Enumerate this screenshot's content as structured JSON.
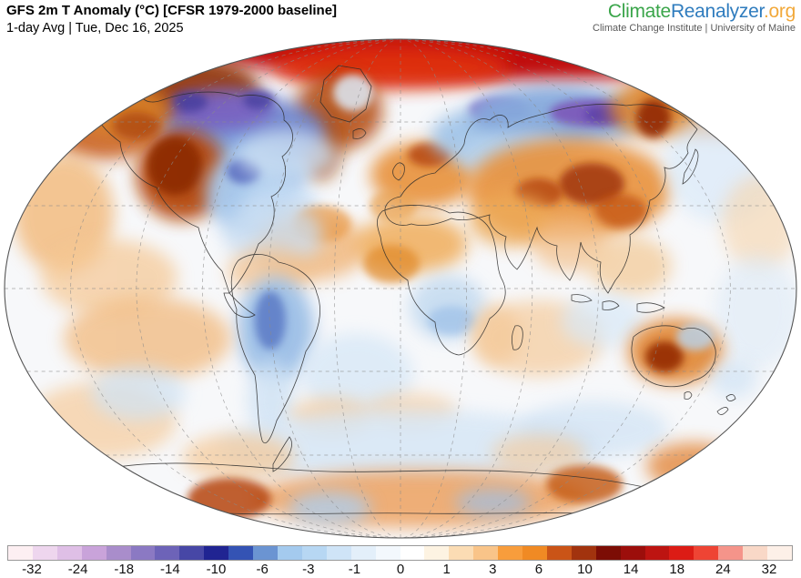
{
  "header": {
    "title": "GFS 2m T Anomaly (°C) [CFSR 1979-2000 baseline]",
    "subtitle": "1-day Avg | Tue, Dec 16, 2025",
    "logo": {
      "part1": "Climate",
      "part2": "Reanalyzer",
      "part3": ".org",
      "color1": "#3aa54a",
      "color2": "#2f7cbe",
      "color3": "#f2a93b",
      "tagline": "Climate Change Institute | University of Maine"
    }
  },
  "chart_data": {
    "type": "heatmap",
    "title": "GFS 2m T Anomaly (°C) [CFSR 1979-2000 baseline]",
    "subtitle": "1-day Avg | Tue, Dec 16, 2025",
    "unit": "°C",
    "projection": "global world map (Winkel-tripel style ellipse)",
    "scale_ticks": [
      -32,
      -24,
      -18,
      -14,
      -10,
      -6,
      -3,
      -1,
      0,
      1,
      3,
      6,
      10,
      14,
      18,
      24,
      32
    ],
    "legend_position": "bottom",
    "notable_anomalies": [
      {
        "region": "Arctic / high北 latitudes band",
        "sign": "strong warm (+10 to +20)"
      },
      {
        "region": "Western United States",
        "sign": "strong warm"
      },
      {
        "region": "Eastern United States / Great Lakes",
        "sign": "cold"
      },
      {
        "region": "Canadian Arctic / Hudson Bay",
        "sign": "strong cold (purple)"
      },
      {
        "region": "Europe / Central Asia / China",
        "sign": "warm"
      },
      {
        "region": "Northern Siberia",
        "sign": "strong cold (purple core)"
      },
      {
        "region": "Northeast Siberia",
        "sign": "strong warm"
      },
      {
        "region": "Central South America (Argentina/Paraguay)",
        "sign": "cold"
      },
      {
        "region": "Western Australia",
        "sign": "strong warm"
      },
      {
        "region": "Antarctica (parts)",
        "sign": "warm patches"
      }
    ]
  },
  "colorbar": {
    "unit": "°C",
    "ticks": [
      "-32",
      "-24",
      "-18",
      "-14",
      "-10",
      "-6",
      "-3",
      "-1",
      "0",
      "1",
      "3",
      "6",
      "10",
      "14",
      "18",
      "24",
      "32"
    ],
    "segment_colors": [
      "#fdeff2",
      "#eed6ee",
      "#dfbfe6",
      "#c9a3da",
      "#a98dcb",
      "#8b79c3",
      "#6d63b8",
      "#4747a6",
      "#202492",
      "#3453b4",
      "#6b94d2",
      "#a4caee",
      "#b7d7f3",
      "#cfe4f7",
      "#e3effa",
      "#f3f8fd",
      "#ffffff",
      "#fdf3e2",
      "#fbdcb4",
      "#f9c489",
      "#f89d3c",
      "#f08a24",
      "#ca5417",
      "#a2330e",
      "#7c0d05",
      "#9c0e0b",
      "#bd1411",
      "#dc1c15",
      "#ee4434",
      "#f5948a",
      "#f9d8c7",
      "#fdf0e8"
    ],
    "border_color": "#999999"
  },
  "map": {
    "background": "#f7f8fa",
    "outline_color": "#555555",
    "coast_color": "#2b2b2b",
    "graticule_color": "#8a8a8a",
    "blobs": [
      [
        "#c00a0a",
        560,
        18,
        330,
        30,
        8,
        1
      ],
      [
        "#e03010",
        430,
        34,
        130,
        24,
        8,
        0.9
      ],
      [
        "#8f2e06",
        190,
        58,
        95,
        38,
        8,
        0.9
      ],
      [
        "#c85a14",
        115,
        100,
        65,
        35,
        8,
        0.85
      ],
      [
        "#d81414",
        845,
        48,
        70,
        45,
        8,
        0.9
      ],
      [
        "#e07820",
        795,
        65,
        95,
        45,
        8,
        0.8
      ],
      [
        "#b34a0e",
        372,
        82,
        48,
        42,
        8,
        0.85
      ],
      [
        "#dce9f6",
        388,
        62,
        22,
        20,
        4,
        0.85
      ],
      [
        "#a84a10",
        352,
        118,
        24,
        40,
        8,
        0.75
      ],
      [
        "#6f86cf",
        268,
        105,
        90,
        40,
        8,
        0.95
      ],
      [
        "#7a5fc0",
        242,
        80,
        58,
        22,
        8,
        0.85
      ],
      [
        "#4a3fa0",
        208,
        72,
        20,
        11,
        4,
        0.9
      ],
      [
        "#4a3fa0",
        284,
        70,
        17,
        10,
        4,
        0.85
      ],
      [
        "#8fb4e4",
        262,
        150,
        75,
        38,
        8,
        0.85
      ],
      [
        "#d9822c",
        132,
        80,
        55,
        30,
        8,
        0.85
      ],
      [
        "#a8420c",
        150,
        98,
        26,
        15,
        4,
        0.7
      ],
      [
        "#b5480e",
        200,
        152,
        50,
        50,
        8,
        0.95
      ],
      [
        "#8c2a06",
        192,
        142,
        30,
        32,
        4,
        0.9
      ],
      [
        "#a9c9ec",
        272,
        172,
        46,
        46,
        8,
        0.95
      ],
      [
        "#5a6cc0",
        268,
        148,
        19,
        14,
        4,
        0.9
      ],
      [
        "#c6ddf4",
        308,
        190,
        42,
        32,
        8,
        0.8
      ],
      [
        "#cadef2",
        315,
        130,
        55,
        28,
        8,
        0.8
      ],
      [
        "#f2b878",
        70,
        195,
        55,
        65,
        8,
        0.8
      ],
      [
        "#f5c793",
        120,
        265,
        75,
        42,
        8,
        0.7
      ],
      [
        "#f0b070",
        342,
        232,
        62,
        36,
        8,
        0.75
      ],
      [
        "#e89540",
        354,
        206,
        32,
        20,
        4,
        0.65
      ],
      [
        "#cadef2",
        300,
        218,
        55,
        35,
        8,
        0.75
      ],
      [
        "#e8913a",
        465,
        152,
        58,
        36,
        8,
        0.9
      ],
      [
        "#b2420a",
        472,
        130,
        24,
        13,
        4,
        0.8
      ],
      [
        "#e8a050",
        432,
        186,
        26,
        18,
        4,
        0.7
      ],
      [
        "#9fc3e8",
        528,
        110,
        55,
        30,
        8,
        0.9
      ],
      [
        "#8a68c4",
        548,
        80,
        32,
        13,
        4,
        0.85
      ],
      [
        "#85a9dc",
        610,
        88,
        95,
        34,
        8,
        0.95
      ],
      [
        "#7b56b8",
        648,
        84,
        44,
        15,
        4,
        0.9
      ],
      [
        "#5a3fa8",
        664,
        86,
        22,
        9,
        4,
        0.85
      ],
      [
        "#b9d4ee",
        565,
        132,
        60,
        28,
        8,
        0.8
      ],
      [
        "#dd8830",
        724,
        80,
        55,
        32,
        8,
        0.9
      ],
      [
        "#8c2006",
        718,
        90,
        19,
        21,
        4,
        0.85
      ],
      [
        "#e8913a",
        625,
        168,
        112,
        56,
        8,
        0.9
      ],
      [
        "#a03408",
        650,
        162,
        36,
        23,
        4,
        0.85
      ],
      [
        "#b2420a",
        592,
        172,
        26,
        16,
        4,
        0.8
      ],
      [
        "#c05010",
        682,
        192,
        29,
        19,
        4,
        0.7
      ],
      [
        "#edaa58",
        562,
        202,
        46,
        29,
        8,
        0.8
      ],
      [
        "#f0ad5c",
        452,
        228,
        62,
        32,
        8,
        0.85
      ],
      [
        "#e08828",
        430,
        250,
        31,
        21,
        4,
        0.7
      ],
      [
        "#c3daf0",
        492,
        298,
        42,
        36,
        8,
        0.85
      ],
      [
        "#9cc0e8",
        496,
        312,
        26,
        16,
        4,
        0.7
      ],
      [
        "#f2b878",
        546,
        328,
        26,
        32,
        8,
        0.6
      ],
      [
        "#f3c08a",
        626,
        228,
        42,
        30,
        8,
        0.7
      ],
      [
        "#f3c893",
        692,
        252,
        46,
        32,
        8,
        0.7
      ],
      [
        "#d9e9f8",
        792,
        142,
        62,
        62,
        8,
        0.7
      ],
      [
        "#f6d4ab",
        835,
        205,
        42,
        52,
        8,
        0.6
      ],
      [
        "#dce9f6",
        832,
        302,
        46,
        62,
        8,
        0.6
      ],
      [
        "#f3c08a",
        296,
        258,
        46,
        26,
        8,
        0.7
      ],
      [
        "#9cbfe6",
        303,
        322,
        42,
        58,
        8,
        0.95
      ],
      [
        "#5e7ec7",
        297,
        312,
        17,
        32,
        4,
        0.9
      ],
      [
        "#cfe2f4",
        298,
        398,
        26,
        42,
        8,
        0.8
      ],
      [
        "#f2bd85",
        162,
        332,
        92,
        46,
        8,
        0.8
      ],
      [
        "#f5cb9b",
        112,
        422,
        82,
        42,
        8,
        0.7
      ],
      [
        "#cfe3f5",
        152,
        392,
        52,
        30,
        8,
        0.7
      ],
      [
        "#d8e8f7",
        392,
        372,
        62,
        46,
        8,
        0.8
      ],
      [
        "#f4c795",
        364,
        418,
        46,
        21,
        8,
        0.7
      ],
      [
        "#f4c795",
        452,
        412,
        50,
        20,
        8,
        0.6
      ],
      [
        "#f5cb9b",
        592,
        332,
        72,
        42,
        8,
        0.7
      ],
      [
        "#d8e8f7",
        662,
        312,
        46,
        30,
        8,
        0.7
      ],
      [
        "#e08530",
        742,
        346,
        52,
        36,
        8,
        0.9
      ],
      [
        "#942a06",
        730,
        352,
        21,
        17,
        4,
        0.9
      ],
      [
        "#b8d4ee",
        764,
        330,
        21,
        15,
        4,
        0.8
      ],
      [
        "#cfe2f4",
        806,
        376,
        26,
        21,
        8,
        0.7
      ],
      [
        "#d5e6f6",
        450,
        452,
        210,
        42,
        8,
        0.8
      ],
      [
        "#cfe2f4",
        652,
        432,
        82,
        31,
        8,
        0.7
      ],
      [
        "#f4c795",
        262,
        462,
        62,
        26,
        8,
        0.7
      ],
      [
        "#f4c795",
        592,
        458,
        52,
        21,
        8,
        0.6
      ],
      [
        "#eda160",
        462,
        508,
        185,
        32,
        8,
        0.85
      ],
      [
        "#b5450c",
        252,
        508,
        46,
        23,
        4,
        0.85
      ],
      [
        "#c2570f",
        642,
        492,
        42,
        21,
        4,
        0.8
      ],
      [
        "#aecdec",
        362,
        518,
        46,
        19,
        8,
        0.8
      ],
      [
        "#9cc0e8",
        542,
        512,
        42,
        16,
        8,
        0.7
      ],
      [
        "#e07820",
        762,
        472,
        52,
        26,
        8,
        0.7
      ]
    ]
  }
}
